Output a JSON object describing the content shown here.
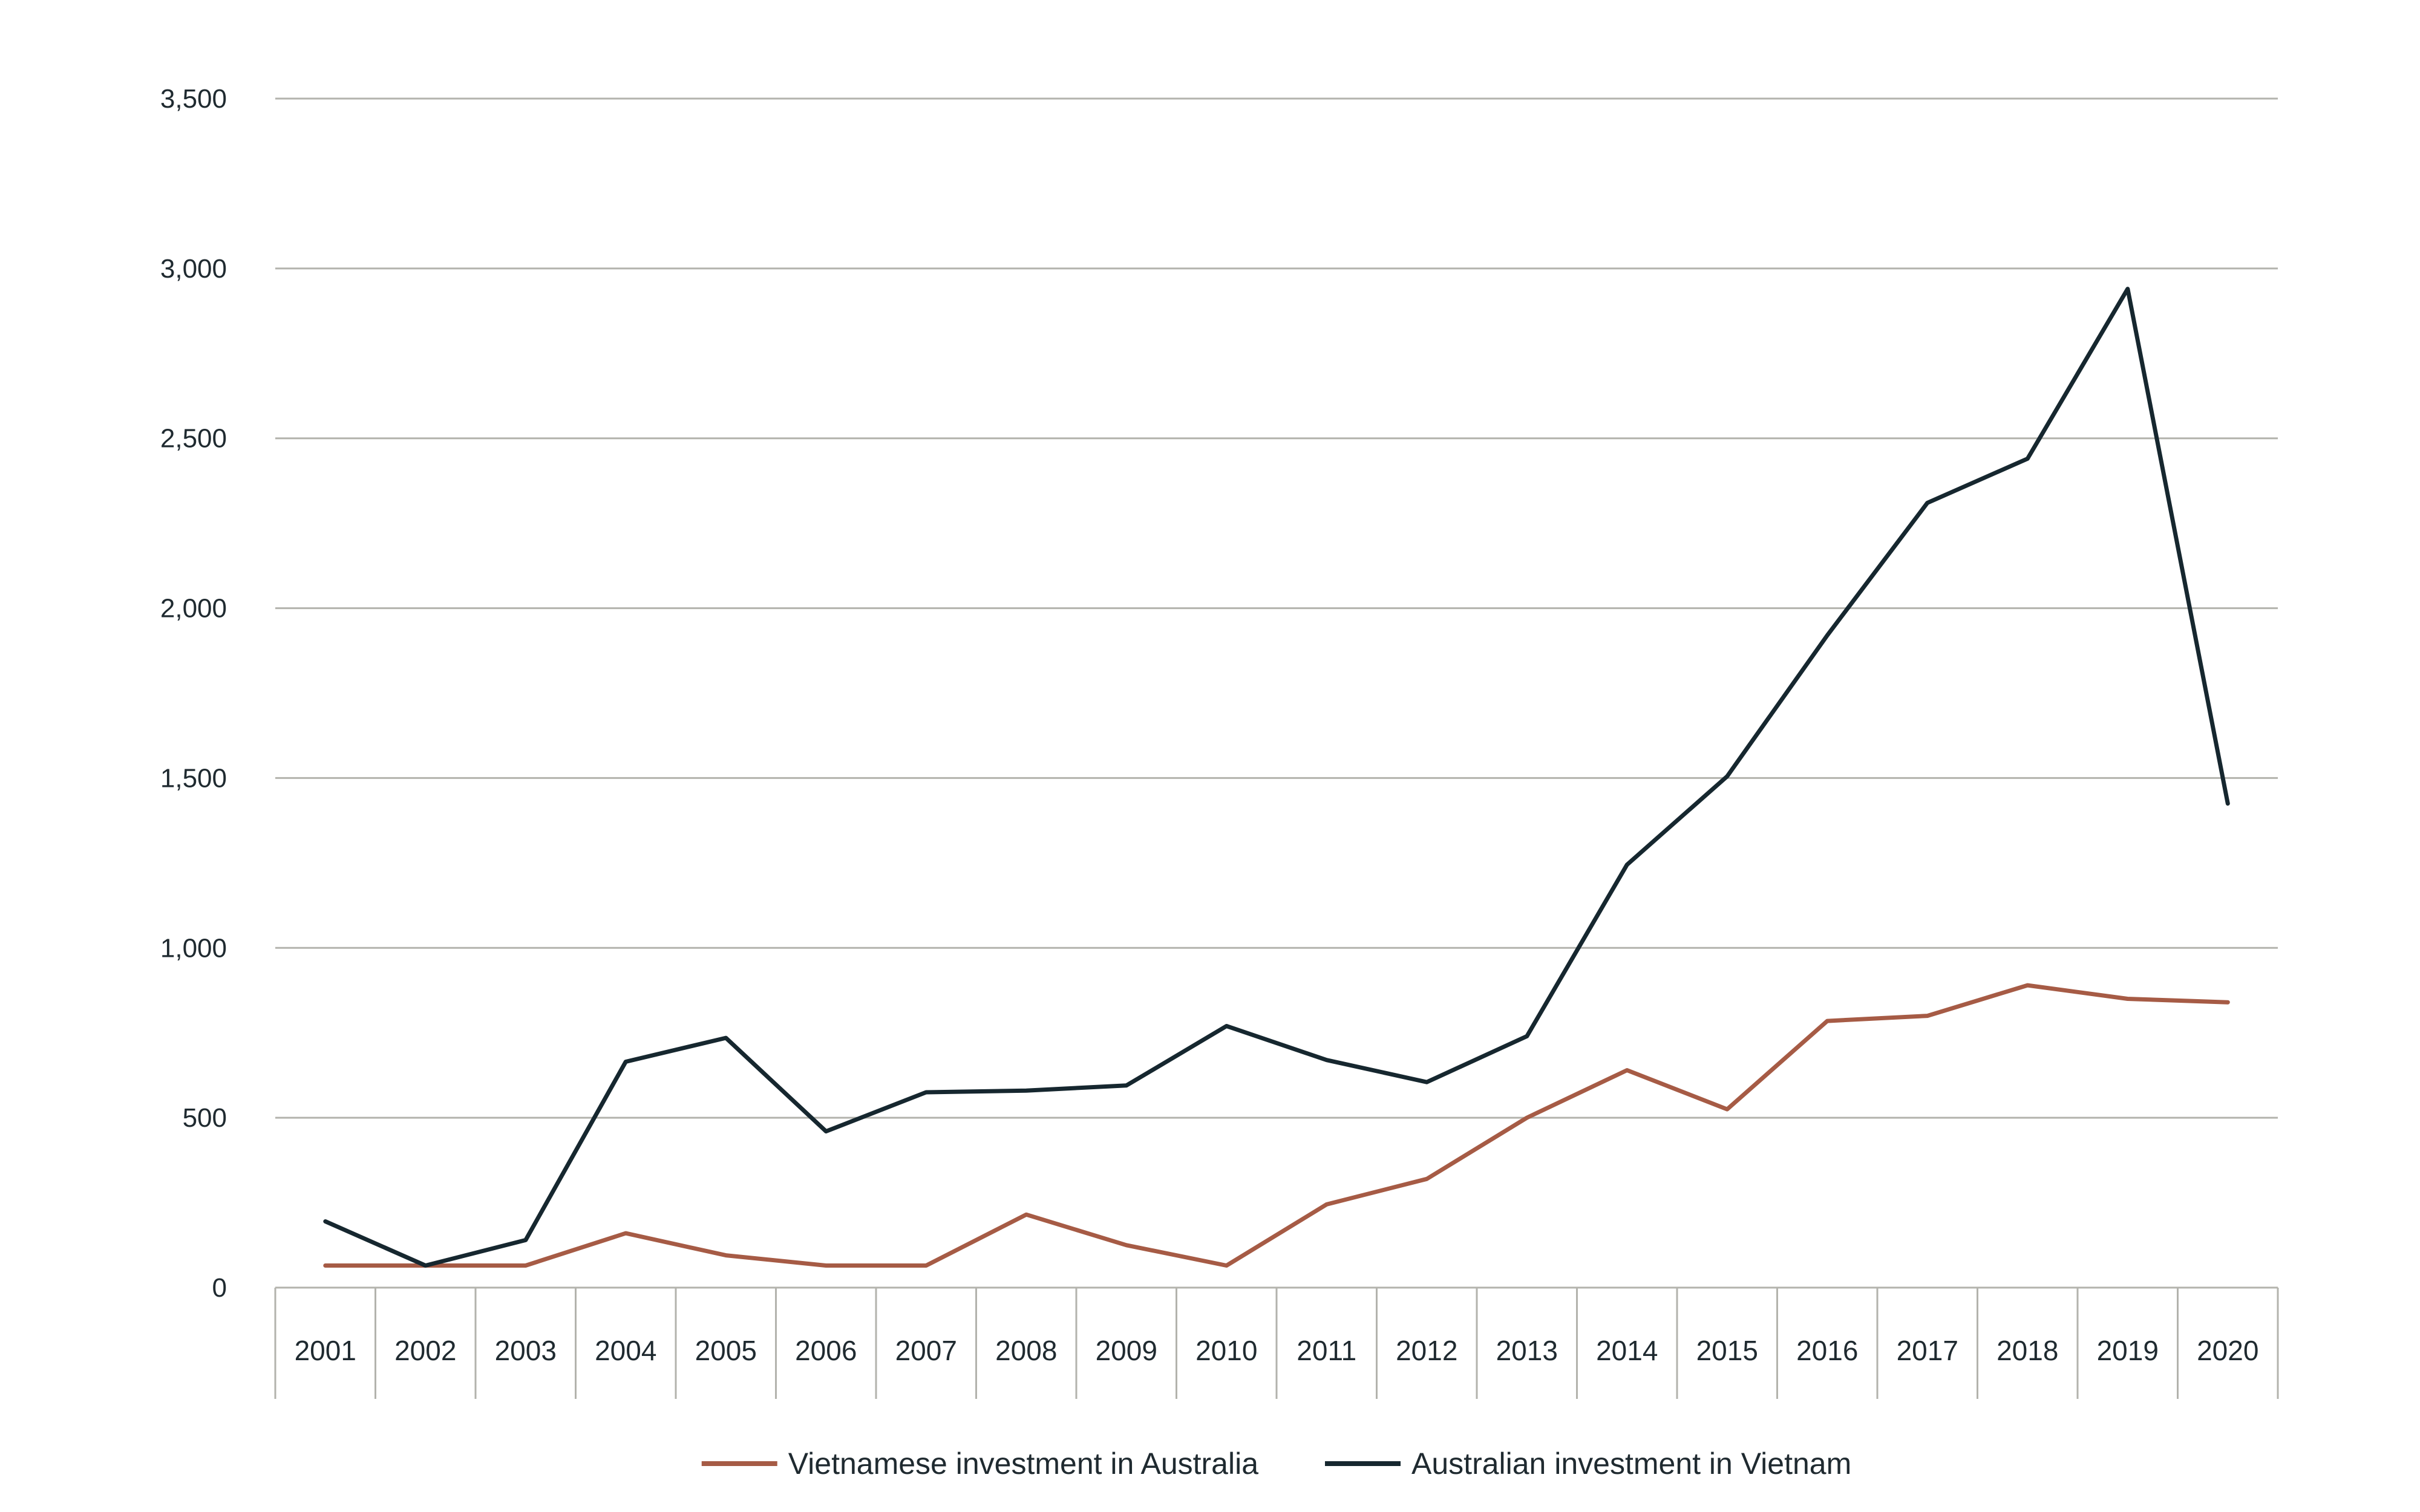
{
  "chart_data": {
    "type": "line",
    "title": "",
    "xlabel": "",
    "ylabel": "",
    "ylim": [
      0,
      3500
    ],
    "yticks": [
      0,
      500,
      1000,
      1500,
      2000,
      2500,
      3000,
      3500
    ],
    "ytick_labels": [
      "0",
      "500",
      "1,000",
      "1,500",
      "2,000",
      "2,500",
      "3,000",
      "3,500"
    ],
    "grid": true,
    "legend_position": "bottom-center",
    "categories": [
      "2001",
      "2002",
      "2003",
      "2004",
      "2005",
      "2006",
      "2007",
      "2008",
      "2009",
      "2010",
      "2011",
      "2012",
      "2013",
      "2014",
      "2015",
      "2016",
      "2017",
      "2018",
      "2019",
      "2020"
    ],
    "series": [
      {
        "name": "Vietnamese investment in Australia",
        "color": "#a65b45",
        "values": [
          65,
          65,
          65,
          160,
          95,
          65,
          65,
          215,
          125,
          65,
          245,
          320,
          500,
          640,
          525,
          785,
          800,
          890,
          850,
          840
        ]
      },
      {
        "name": "Australian investment in Vietnam",
        "color": "#16272f",
        "values": [
          195,
          65,
          140,
          665,
          735,
          460,
          575,
          580,
          595,
          770,
          670,
          605,
          740,
          1245,
          1505,
          1920,
          2310,
          2440,
          2940,
          1425
        ]
      }
    ]
  }
}
